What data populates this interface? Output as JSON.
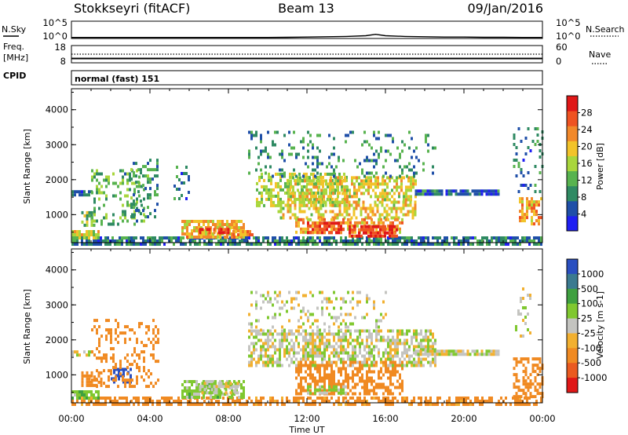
{
  "header": {
    "station": "Stokkseyri (fitACF)",
    "beam": "Beam 13",
    "date": "09/Jan/2016"
  },
  "nsky_panel": {
    "left_label": "N.Sky",
    "right_label": "N.Search",
    "left_ticks": [
      "10^5",
      "10^0"
    ],
    "right_ticks": [
      "10^5",
      "10^0"
    ]
  },
  "freq_panel": {
    "left_label_1": "Freq.",
    "left_label_2": "[MHz]",
    "cpid_label": "CPID",
    "right_label": "Nave",
    "left_ticks": [
      "18",
      "8"
    ],
    "right_ticks": [
      "60",
      "0"
    ]
  },
  "cpid_panel": {
    "text": "normal (fast) 151"
  },
  "axes": {
    "ylabel": "Slant Range [km]",
    "xlabel": "Time UT",
    "yticks": [
      "1000",
      "2000",
      "3000",
      "4000"
    ],
    "xticks": [
      "00:00",
      "04:00",
      "08:00",
      "12:00",
      "16:00",
      "20:00",
      "00:00"
    ]
  },
  "colors": {
    "power": [
      "#1f1ff2",
      "#1f4fa8",
      "#2f8a63",
      "#58b34f",
      "#a9d63c",
      "#f2c32a",
      "#f2892a",
      "#ef5322",
      "#e01818"
    ],
    "velocity_pos": [
      "#2a4fc0",
      "#3b7a90",
      "#3fa040",
      "#80c830"
    ],
    "velocity_ground": "#c4c4c0",
    "velocity_neg": [
      "#f2b030",
      "#f08a22",
      "#ea5a20",
      "#e01818"
    ]
  },
  "chart_data": [
    {
      "type": "line",
      "title": "N.Sky / N.Search",
      "x_range_hours": [
        0,
        24
      ],
      "ylim": [
        0,
        5
      ],
      "x": [
        0,
        1,
        2,
        3,
        4,
        5,
        6,
        7,
        8,
        9,
        10,
        11,
        12,
        13,
        14,
        15,
        15.5,
        16,
        17,
        18,
        19,
        20,
        21,
        22,
        23,
        24
      ],
      "series": [
        {
          "name": "N.Sky",
          "values": [
            0.3,
            0.3,
            0.3,
            0.3,
            0.3,
            0.3,
            0.3,
            0.3,
            0.3,
            0.3,
            0.3,
            0.35,
            0.4,
            0.5,
            0.6,
            0.8,
            1.2,
            0.8,
            0.6,
            0.5,
            0.4,
            0.4,
            0.35,
            0.35,
            0.3,
            0.3
          ]
        }
      ]
    },
    {
      "type": "line",
      "title": "Freq. / Nave",
      "x_range_hours": [
        0,
        24
      ],
      "series": [
        {
          "name": "Freq.",
          "values_mhz": {
            "x": [
              0,
              24
            ],
            "y": [
              10.5,
              10.5
            ]
          }
        },
        {
          "name": "Nave",
          "values": {
            "x": [
              0,
              24
            ],
            "y": [
              30,
              30
            ]
          }
        }
      ]
    },
    {
      "type": "heatmap",
      "title": "Power",
      "colorbar_label": "Power [dB]",
      "colorbar_ticks": [
        "4",
        "8",
        "12",
        "16",
        "20",
        "24",
        "28"
      ],
      "colorbar_range": [
        0,
        32
      ],
      "xlim_hours": [
        0,
        24
      ],
      "ylim_km": [
        200,
        4600
      ],
      "regions": [
        {
          "t0": 0.0,
          "t1": 24.0,
          "r0": 200,
          "r1": 380,
          "value": 8,
          "dens": 0.75
        },
        {
          "t0": 0.0,
          "t1": 1.4,
          "r0": 380,
          "r1": 560,
          "value": 17,
          "dens": 0.85
        },
        {
          "t0": 0.5,
          "t1": 1.2,
          "r0": 700,
          "r1": 1100,
          "value": 14,
          "dens": 0.55
        },
        {
          "t0": 0.0,
          "t1": 1.0,
          "r0": 1550,
          "r1": 1700,
          "value": 6,
          "dens": 0.8
        },
        {
          "t0": 1.0,
          "t1": 3.7,
          "r0": 700,
          "r1": 2300,
          "value": 12,
          "dens": 0.28
        },
        {
          "t0": 3.0,
          "t1": 4.4,
          "r0": 900,
          "r1": 2600,
          "value": 10,
          "dens": 0.3
        },
        {
          "t0": 5.2,
          "t1": 6.0,
          "r0": 1200,
          "r1": 2400,
          "value": 8,
          "dens": 0.22
        },
        {
          "t0": 5.6,
          "t1": 8.8,
          "r0": 380,
          "r1": 850,
          "value": 20,
          "dens": 0.8
        },
        {
          "t0": 6.5,
          "t1": 8.0,
          "r0": 450,
          "r1": 620,
          "value": 27,
          "dens": 0.8
        },
        {
          "t0": 8.2,
          "t1": 9.2,
          "r0": 400,
          "r1": 560,
          "value": 22,
          "dens": 0.7
        },
        {
          "t0": 9.4,
          "t1": 14.0,
          "r0": 1300,
          "r1": 2200,
          "value": 16,
          "dens": 0.55
        },
        {
          "t0": 11.0,
          "t1": 17.6,
          "r0": 1450,
          "r1": 2100,
          "value": 18,
          "dens": 0.55
        },
        {
          "t0": 10.5,
          "t1": 17.5,
          "r0": 900,
          "r1": 1400,
          "value": 19,
          "dens": 0.5
        },
        {
          "t0": 11.4,
          "t1": 16.8,
          "r0": 500,
          "r1": 900,
          "value": 21,
          "dens": 0.6
        },
        {
          "t0": 12.0,
          "t1": 13.8,
          "r0": 450,
          "r1": 800,
          "value": 28,
          "dens": 0.75
        },
        {
          "t0": 14.0,
          "t1": 16.6,
          "r0": 430,
          "r1": 700,
          "value": 29,
          "dens": 0.75
        },
        {
          "t0": 9.0,
          "t1": 18.5,
          "r0": 2100,
          "r1": 3400,
          "value": 9,
          "dens": 0.16
        },
        {
          "t0": 17.5,
          "t1": 21.8,
          "r0": 1550,
          "r1": 1720,
          "value": 7,
          "dens": 0.9
        },
        {
          "t0": 22.8,
          "t1": 24.0,
          "r0": 700,
          "r1": 1500,
          "value": 22,
          "dens": 0.6
        },
        {
          "t0": 22.5,
          "t1": 24.0,
          "r0": 1700,
          "r1": 3500,
          "value": 8,
          "dens": 0.15
        }
      ]
    },
    {
      "type": "heatmap",
      "title": "Velocity",
      "colorbar_label": "Velocity [m s-1]",
      "colorbar_ticks": [
        "1000",
        "500",
        "100",
        "25",
        "-25",
        "-100",
        "-500",
        "-1000"
      ],
      "xlim_hours": [
        0,
        24
      ],
      "ylim_km": [
        200,
        4600
      ],
      "regions": [
        {
          "t0": 0.0,
          "t1": 24.0,
          "r0": 200,
          "r1": 380,
          "value": -150,
          "dens": 0.6
        },
        {
          "t0": 0.0,
          "t1": 1.4,
          "r0": 380,
          "r1": 560,
          "value": 60,
          "dens": 0.85
        },
        {
          "t0": 0.5,
          "t1": 1.5,
          "r0": 700,
          "r1": 1100,
          "value": -300,
          "dens": 0.55
        },
        {
          "t0": 2.0,
          "t1": 3.0,
          "r0": 800,
          "r1": 1200,
          "value": 800,
          "dens": 0.6
        },
        {
          "t0": 0.0,
          "t1": 1.0,
          "r0": 1550,
          "r1": 1700,
          "value": 0,
          "dens": 0.8
        },
        {
          "t0": 1.0,
          "t1": 4.4,
          "r0": 700,
          "r1": 2600,
          "value": -300,
          "dens": 0.25
        },
        {
          "t0": 5.6,
          "t1": 8.8,
          "r0": 380,
          "r1": 850,
          "value": 50,
          "dens": 0.7
        },
        {
          "t0": 6.5,
          "t1": 8.5,
          "r0": 450,
          "r1": 800,
          "value": 0,
          "dens": 0.7
        },
        {
          "t0": 9.0,
          "t1": 18.5,
          "r0": 1300,
          "r1": 2300,
          "value": 0,
          "dens": 0.6
        },
        {
          "t0": 9.0,
          "t1": 16.0,
          "r0": 2300,
          "r1": 3400,
          "value": 0,
          "dens": 0.2
        },
        {
          "t0": 11.4,
          "t1": 16.8,
          "r0": 500,
          "r1": 1400,
          "value": -200,
          "dens": 0.55
        },
        {
          "t0": 12.0,
          "t1": 14.0,
          "r0": 450,
          "r1": 700,
          "value": 40,
          "dens": 0.6
        },
        {
          "t0": 17.5,
          "t1": 21.8,
          "r0": 1550,
          "r1": 1720,
          "value": 0,
          "dens": 0.9
        },
        {
          "t0": 22.5,
          "t1": 24.0,
          "r0": 400,
          "r1": 1500,
          "value": -400,
          "dens": 0.5
        },
        {
          "t0": 22.6,
          "t1": 23.4,
          "r0": 1800,
          "r1": 3500,
          "value": 0,
          "dens": 0.15
        }
      ]
    }
  ]
}
